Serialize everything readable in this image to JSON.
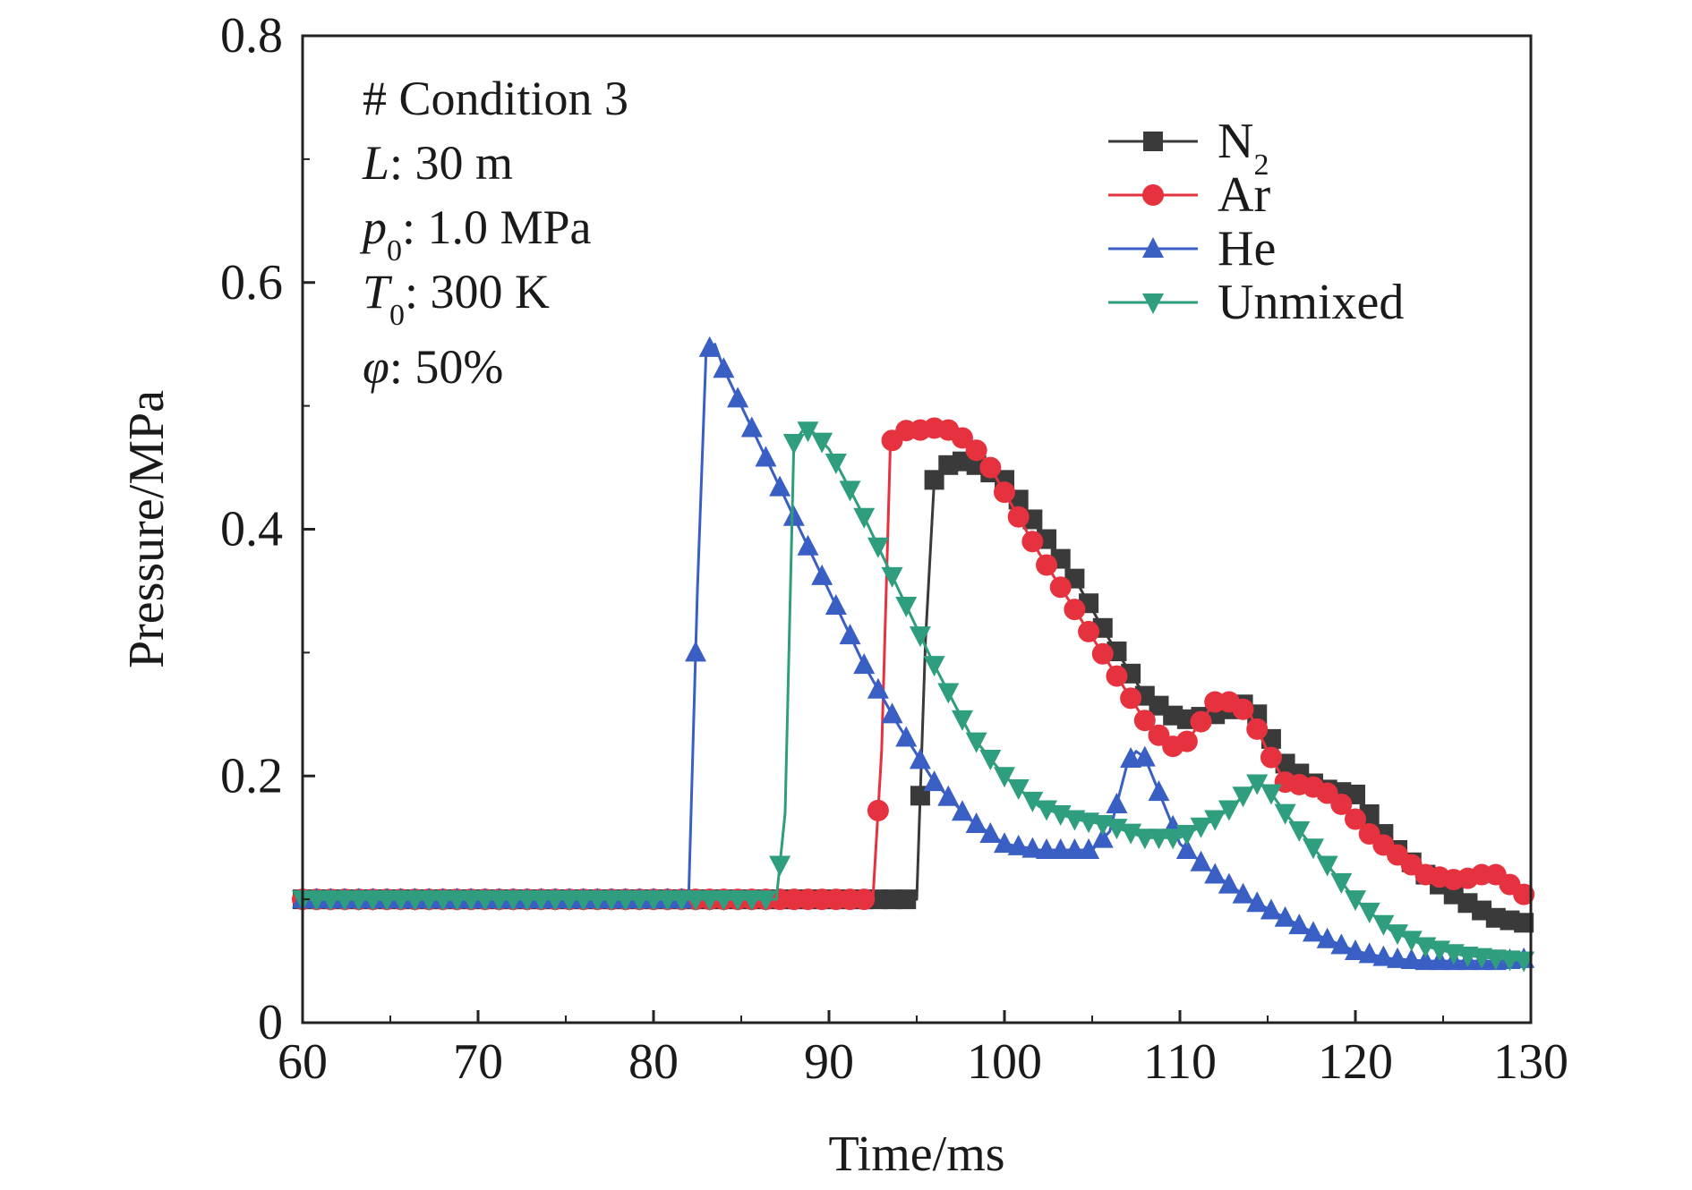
{
  "chart_data": {
    "type": "line",
    "xlabel": "Time/ms",
    "ylabel": "Pressure/MPa",
    "xlim": [
      60,
      130
    ],
    "ylim": [
      0,
      0.8
    ],
    "xticks": [
      60,
      70,
      80,
      90,
      100,
      110,
      120,
      130
    ],
    "xtick_labels": [
      "60",
      "70",
      "80",
      "90",
      "100",
      "110",
      "120",
      "130"
    ],
    "yticks": [
      0,
      0.2,
      0.4,
      0.6,
      0.8
    ],
    "ytick_labels": [
      "0",
      "0.2",
      "0.4",
      "0.6",
      "0.8"
    ],
    "grid": false,
    "legend_position": "top-right",
    "annotation": {
      "condition": "# Condition 3",
      "L_symbol": "L",
      "L_value": ": 30 m",
      "p_symbol": "p",
      "p_sub": "0",
      "p_value": ": 1.0 MPa",
      "T_symbol": "T",
      "T_sub": "0",
      "T_value": ": 300 K",
      "phi_symbol": "φ",
      "phi_value": ": 50%"
    },
    "series": [
      {
        "name": "N",
        "name_sub": "2",
        "color": "#3a3a3a",
        "marker": "square",
        "x": [
          60,
          95,
          95.5,
          96,
          97,
          98,
          100,
          102,
          104,
          106,
          108,
          110,
          112,
          114,
          116,
          118,
          120,
          122,
          124,
          126,
          128,
          130
        ],
        "y": [
          0.1,
          0.1,
          0.31,
          0.44,
          0.455,
          0.455,
          0.44,
          0.4,
          0.36,
          0.31,
          0.265,
          0.245,
          0.25,
          0.26,
          0.21,
          0.19,
          0.185,
          0.145,
          0.12,
          0.1,
          0.085,
          0.08
        ]
      },
      {
        "name": "Ar",
        "color": "#e5323e",
        "marker": "circle",
        "x": [
          60,
          92.5,
          93,
          93.5,
          94,
          95,
          96,
          97,
          98,
          99,
          100,
          102,
          104,
          106,
          108,
          109,
          110,
          111,
          112,
          113,
          114,
          115,
          116,
          118,
          119,
          120,
          121,
          122,
          124,
          126,
          127,
          128,
          129,
          130
        ],
        "y": [
          0.1,
          0.1,
          0.22,
          0.47,
          0.48,
          0.48,
          0.482,
          0.48,
          0.47,
          0.455,
          0.43,
          0.38,
          0.335,
          0.29,
          0.245,
          0.23,
          0.22,
          0.24,
          0.26,
          0.26,
          0.25,
          0.22,
          0.195,
          0.19,
          0.18,
          0.165,
          0.15,
          0.14,
          0.12,
          0.115,
          0.12,
          0.12,
          0.11,
          0.1
        ]
      },
      {
        "name": "He",
        "color": "#3a5fc4",
        "marker": "triangle-up",
        "x": [
          60,
          82,
          82.5,
          83,
          83.5,
          84,
          86,
          88,
          90,
          92,
          94,
          96,
          98,
          100,
          102,
          104,
          105,
          106,
          107,
          107.5,
          108,
          109,
          110,
          112,
          114,
          116,
          118,
          120,
          122,
          124,
          126,
          128,
          130
        ],
        "y": [
          0.1,
          0.1,
          0.35,
          0.545,
          0.55,
          0.53,
          0.47,
          0.41,
          0.35,
          0.29,
          0.24,
          0.195,
          0.165,
          0.145,
          0.14,
          0.14,
          0.14,
          0.155,
          0.21,
          0.22,
          0.215,
          0.18,
          0.145,
          0.12,
          0.1,
          0.085,
          0.07,
          0.058,
          0.052,
          0.05,
          0.05,
          0.05,
          0.052
        ]
      },
      {
        "name": "Unmixed",
        "color": "#2e9e7e",
        "marker": "triangle-down",
        "x": [
          60,
          87,
          87.5,
          88,
          88.5,
          89,
          90,
          92,
          94,
          96,
          98,
          100,
          102,
          104,
          106,
          108,
          110,
          112,
          113,
          114,
          114.5,
          115,
          116,
          118,
          120,
          122,
          124,
          126,
          128,
          130
        ],
        "y": [
          0.1,
          0.1,
          0.17,
          0.47,
          0.48,
          0.48,
          0.465,
          0.41,
          0.35,
          0.29,
          0.235,
          0.2,
          0.175,
          0.165,
          0.16,
          0.15,
          0.15,
          0.165,
          0.175,
          0.19,
          0.195,
          0.19,
          0.17,
          0.135,
          0.1,
          0.075,
          0.062,
          0.055,
          0.052,
          0.05
        ]
      }
    ]
  }
}
